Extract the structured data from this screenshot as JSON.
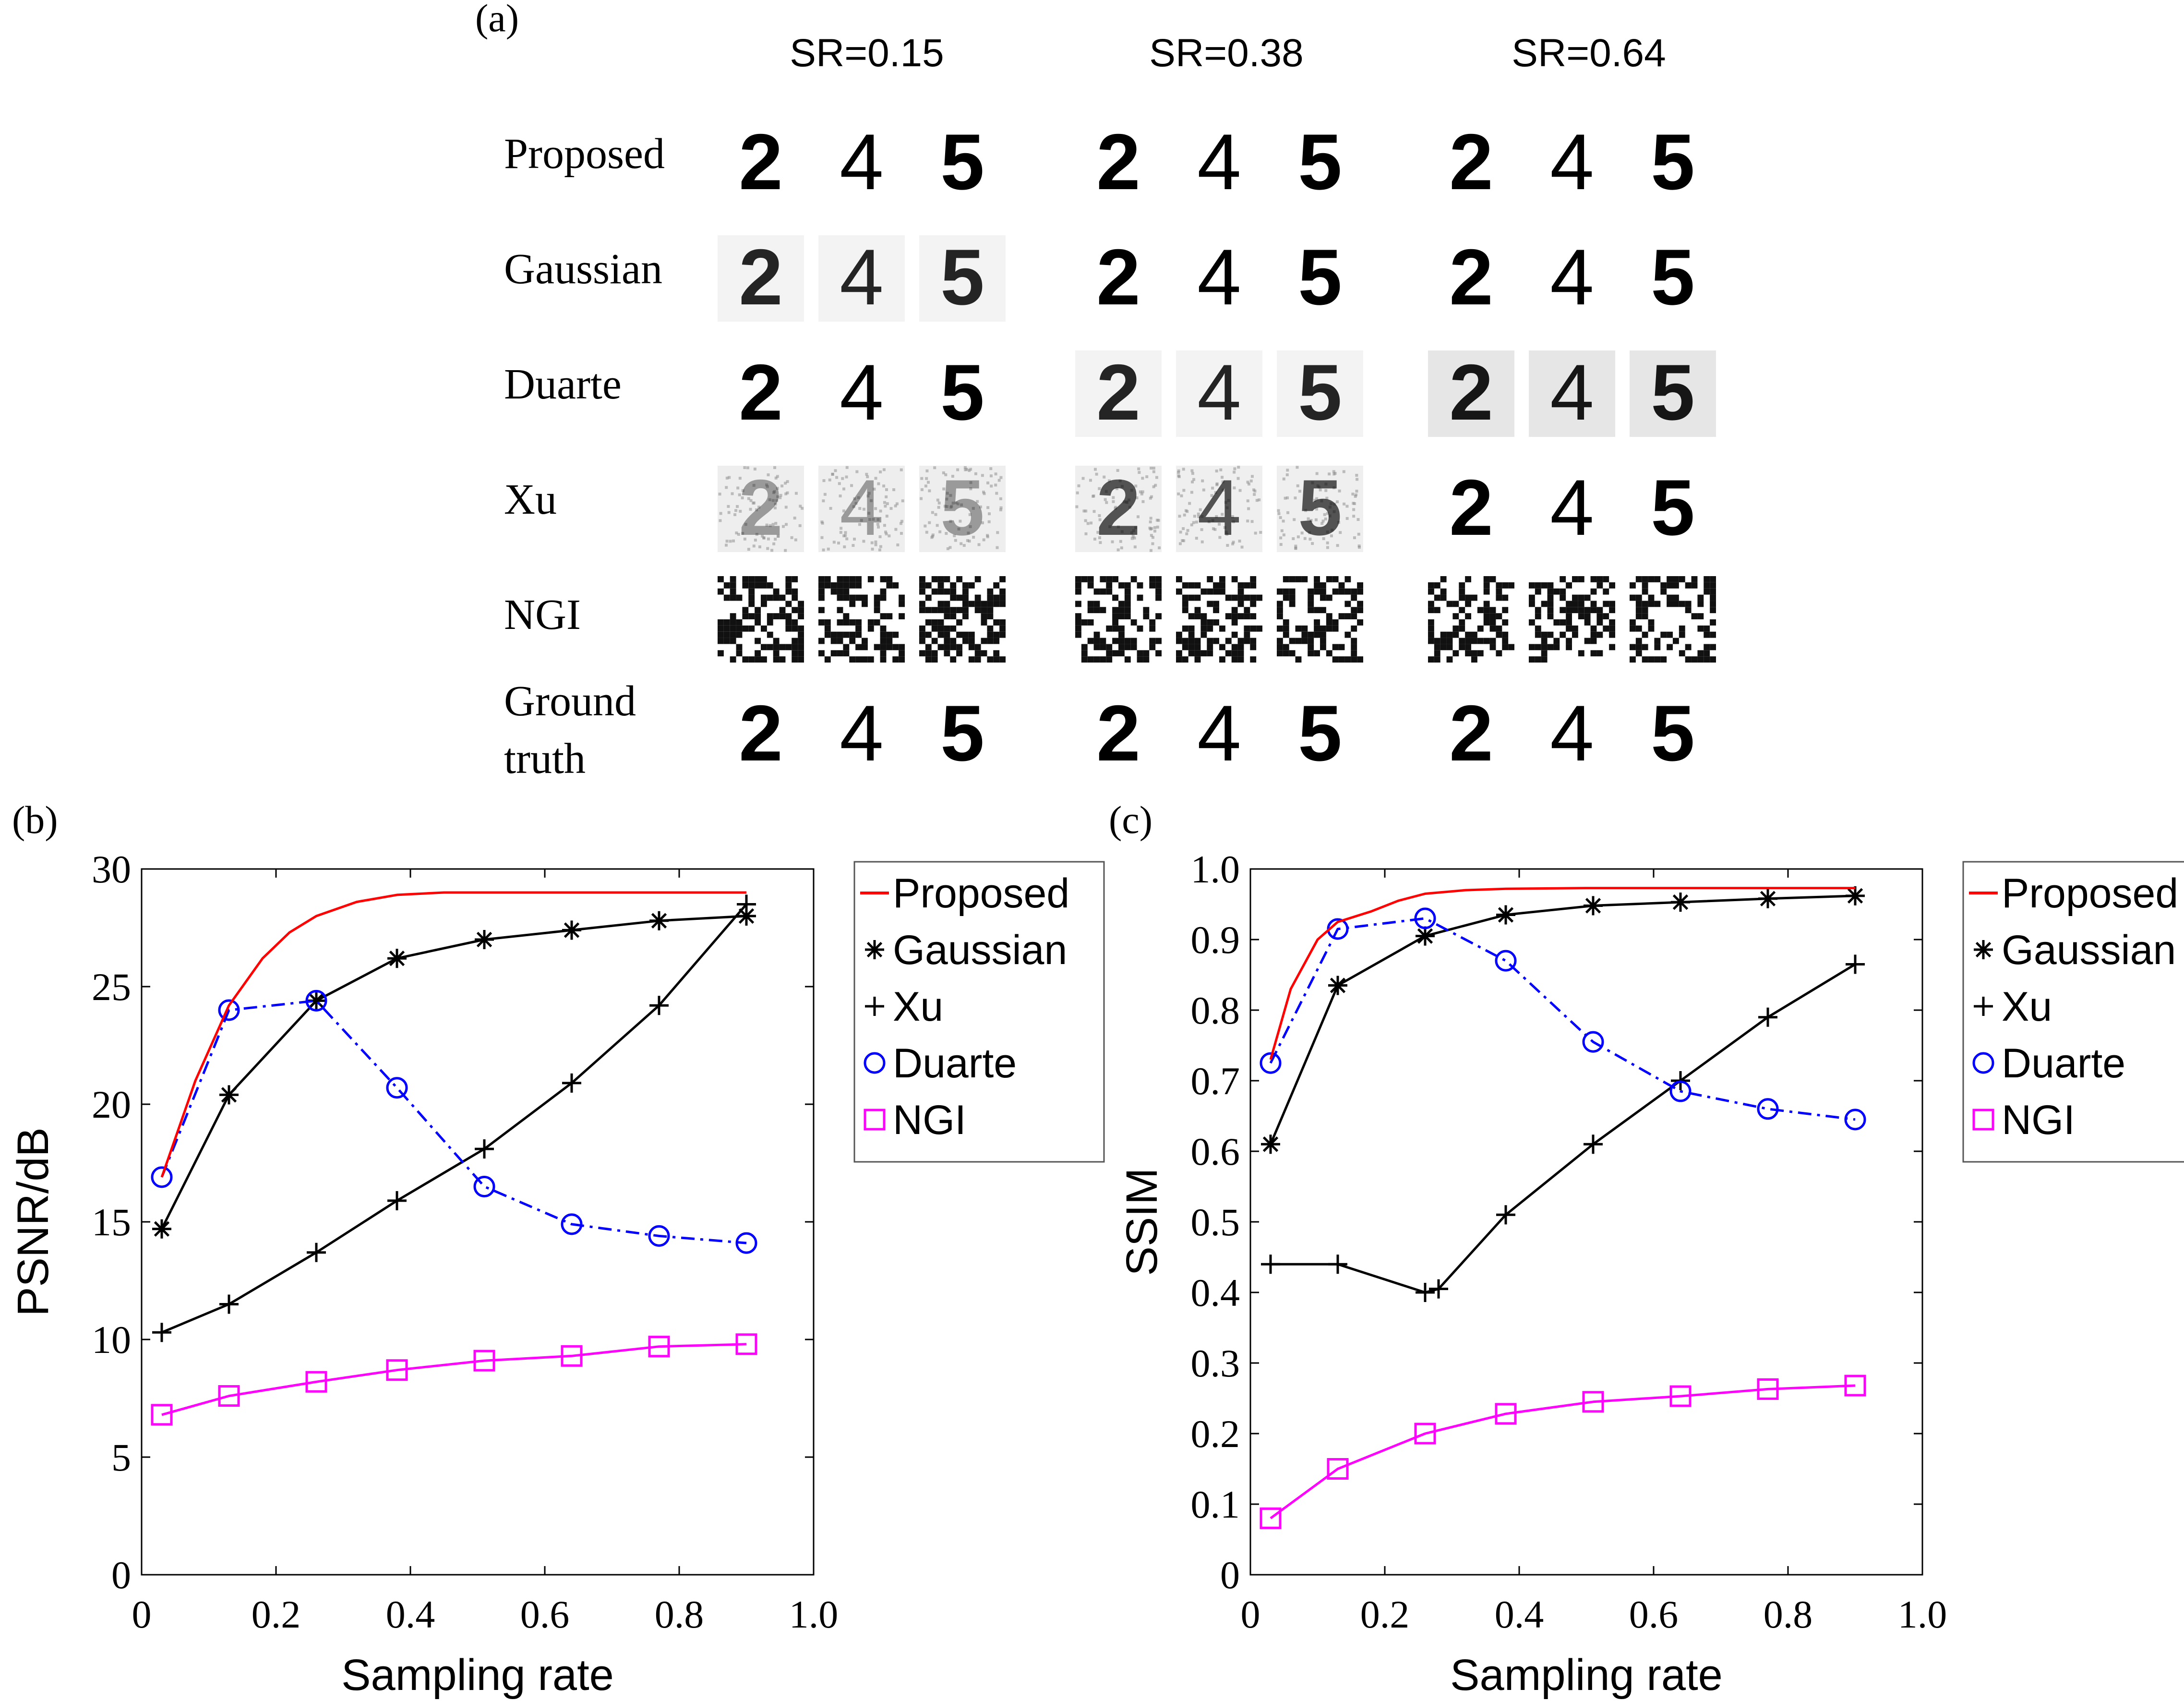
{
  "panel_a": {
    "label": "(a)",
    "sr_labels": [
      "SR=0.15",
      "SR=0.38",
      "SR=0.64"
    ],
    "row_labels": [
      "Proposed",
      "Gaussian",
      "Duarte",
      "Xu",
      "NGI"
    ],
    "ground_truth_label_line1": "Ground",
    "ground_truth_label_line2": "truth",
    "digits": [
      "2",
      "4",
      "5"
    ],
    "row_quality": {
      "Proposed": [
        "clean",
        "clean",
        "clean"
      ],
      "Gaussian": [
        "blurry",
        "clean",
        "clean"
      ],
      "Duarte": [
        "clean",
        "blurry",
        "dark"
      ],
      "Xu": [
        "faint",
        "noisy",
        "clean"
      ],
      "NGI": [
        "noise",
        "noise",
        "noise"
      ],
      "Ground truth": [
        "clean",
        "clean",
        "clean"
      ]
    }
  },
  "colors": {
    "proposed": "#ff0000",
    "gaussian": "#000000",
    "xu": "#000000",
    "duarte": "#0000ff",
    "ngi": "#ff00ff"
  },
  "chart_data": [
    {
      "id": "b",
      "panel_label": "(b)",
      "type": "line",
      "xlabel": "Sampling rate",
      "ylabel": "PSNR/dB",
      "xlim": [
        0,
        1.0
      ],
      "ylim": [
        0,
        30
      ],
      "xticks": [
        "0",
        "0.2",
        "0.4",
        "0.6",
        "0.8",
        "1.0"
      ],
      "yticks": [
        "0",
        "5",
        "10",
        "15",
        "20",
        "25",
        "30"
      ],
      "legend_position": "outside-right-top",
      "series": [
        {
          "name": "Proposed",
          "style": "solid",
          "marker": "none",
          "color": "#ff0000",
          "x": [
            0.03,
            0.08,
            0.13,
            0.18,
            0.22,
            0.26,
            0.32,
            0.38,
            0.45,
            0.52,
            0.6,
            0.7,
            0.8,
            0.9
          ],
          "y": [
            16.9,
            21.0,
            24.2,
            26.2,
            27.3,
            28.0,
            28.6,
            28.9,
            29.0,
            29.0,
            29.0,
            29.0,
            29.0,
            29.0
          ]
        },
        {
          "name": "Gaussian",
          "style": "solid",
          "marker": "asterisk",
          "color": "#000000",
          "x": [
            0.03,
            0.13,
            0.26,
            0.38,
            0.51,
            0.64,
            0.77,
            0.9
          ],
          "y": [
            14.7,
            20.4,
            24.4,
            26.2,
            27.0,
            27.4,
            27.8,
            28.0
          ]
        },
        {
          "name": "Xu",
          "style": "solid",
          "marker": "plus",
          "color": "#000000",
          "x": [
            0.03,
            0.13,
            0.26,
            0.38,
            0.51,
            0.64,
            0.77,
            0.9
          ],
          "y": [
            10.3,
            11.5,
            13.7,
            15.9,
            18.1,
            20.9,
            24.2,
            28.5
          ]
        },
        {
          "name": "Duarte",
          "style": "dashdot",
          "marker": "circle",
          "color": "#0000ff",
          "x": [
            0.03,
            0.13,
            0.26,
            0.38,
            0.51,
            0.64,
            0.77,
            0.9
          ],
          "y": [
            16.9,
            24.0,
            24.4,
            20.7,
            16.5,
            14.9,
            14.4,
            14.1
          ]
        },
        {
          "name": "NGI",
          "style": "solid",
          "marker": "square",
          "color": "#ff00ff",
          "x": [
            0.03,
            0.13,
            0.26,
            0.38,
            0.51,
            0.64,
            0.77,
            0.9
          ],
          "y": [
            6.8,
            7.6,
            8.2,
            8.7,
            9.1,
            9.3,
            9.7,
            9.8
          ]
        }
      ]
    },
    {
      "id": "c",
      "panel_label": "(c)",
      "type": "line",
      "xlabel": "Sampling rate",
      "ylabel": "SSIM",
      "xlim": [
        0,
        1.0
      ],
      "ylim": [
        0,
        1.0
      ],
      "xticks": [
        "0",
        "0.2",
        "0.4",
        "0.6",
        "0.8",
        "1.0"
      ],
      "yticks": [
        "0",
        "0.1",
        "0.2",
        "0.3",
        "0.4",
        "0.5",
        "0.6",
        "0.7",
        "0.8",
        "0.9",
        "1.0"
      ],
      "legend_position": "outside-right-top",
      "series": [
        {
          "name": "Proposed",
          "style": "solid",
          "marker": "none",
          "color": "#ff0000",
          "x": [
            0.03,
            0.06,
            0.1,
            0.13,
            0.18,
            0.22,
            0.26,
            0.32,
            0.38,
            0.5,
            0.64,
            0.77,
            0.9
          ],
          "y": [
            0.73,
            0.83,
            0.9,
            0.925,
            0.94,
            0.955,
            0.965,
            0.97,
            0.972,
            0.973,
            0.973,
            0.973,
            0.973
          ]
        },
        {
          "name": "Gaussian",
          "style": "solid",
          "marker": "asterisk",
          "color": "#000000",
          "x": [
            0.03,
            0.13,
            0.26,
            0.38,
            0.51,
            0.64,
            0.77,
            0.9
          ],
          "y": [
            0.61,
            0.835,
            0.905,
            0.935,
            0.948,
            0.953,
            0.958,
            0.962
          ]
        },
        {
          "name": "Xu",
          "style": "solid",
          "marker": "plus",
          "color": "#000000",
          "x": [
            0.03,
            0.13,
            0.26,
            0.28,
            0.38,
            0.51,
            0.64,
            0.77,
            0.9
          ],
          "y": [
            0.44,
            0.44,
            0.4,
            0.405,
            0.51,
            0.61,
            0.7,
            0.79,
            0.865
          ]
        },
        {
          "name": "Duarte",
          "style": "dashdot",
          "marker": "circle",
          "color": "#0000ff",
          "x": [
            0.03,
            0.13,
            0.26,
            0.38,
            0.51,
            0.64,
            0.77,
            0.9
          ],
          "y": [
            0.725,
            0.915,
            0.93,
            0.87,
            0.755,
            0.685,
            0.66,
            0.645
          ]
        },
        {
          "name": "NGI",
          "style": "solid",
          "marker": "square",
          "color": "#ff00ff",
          "x": [
            0.03,
            0.13,
            0.26,
            0.38,
            0.51,
            0.64,
            0.77,
            0.9
          ],
          "y": [
            0.08,
            0.15,
            0.2,
            0.228,
            0.245,
            0.253,
            0.263,
            0.268
          ]
        }
      ]
    }
  ]
}
